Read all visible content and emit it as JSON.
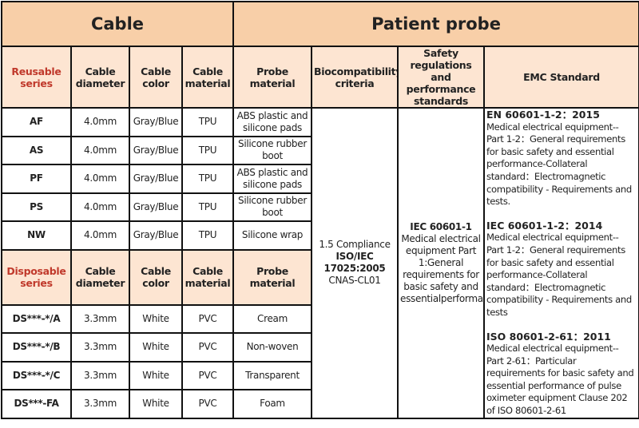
{
  "headers": {
    "cable": "Cable",
    "patient_probe": "Patient probe",
    "reusable_series": "Reusable series",
    "disposable_series": "Disposable series",
    "cable_diameter": "Cable diameter",
    "cable_color": "Cable color",
    "cable_material": "Cable material",
    "probe_material": "Probe material",
    "biocompatibility": "Biocompatibility criteria",
    "safety": "Safety regulations and performance standards",
    "emc": "EMC Standard"
  },
  "reusable": [
    {
      "series": "AF",
      "diameter": "4.0mm",
      "color": "Gray/Blue",
      "material": "TPU",
      "probe": "ABS plastic and silicone pads"
    },
    {
      "series": "AS",
      "diameter": "4.0mm",
      "color": "Gray/Blue",
      "material": "TPU",
      "probe": "Silicone rubber boot"
    },
    {
      "series": "PF",
      "diameter": "4.0mm",
      "color": "Gray/Blue",
      "material": "TPU",
      "probe": "ABS plastic and silicone pads"
    },
    {
      "series": "PS",
      "diameter": "4.0mm",
      "color": "Gray/Blue",
      "material": "TPU",
      "probe": "Silicone rubber boot"
    },
    {
      "series": "NW",
      "diameter": "4.0mm",
      "color": "Gray/Blue",
      "material": "TPU",
      "probe": "Silicone wrap"
    }
  ],
  "disposable": [
    {
      "series": "DS***-*/A",
      "diameter": "3.3mm",
      "color": "White",
      "material": "PVC",
      "probe": "Cream"
    },
    {
      "series": "DS***-*/B",
      "diameter": "3.3mm",
      "color": "White",
      "material": "PVC",
      "probe": "Non-woven"
    },
    {
      "series": "DS***-*/C",
      "diameter": "3.3mm",
      "color": "White",
      "material": "PVC",
      "probe": "Transparent"
    },
    {
      "series": "DS***-FA",
      "diameter": "3.3mm",
      "color": "White",
      "material": "PVC",
      "probe": "Foam"
    }
  ],
  "biocompatibility": {
    "line1": "1.5 Compliance",
    "bold": "ISO/IEC 17025:2005",
    "line3": "CNAS-CL01"
  },
  "safety": {
    "bold": "IEC 60601-1",
    "text": "Medical electrical equipment Part 1:General requirements for basic safety and essentialperformance"
  },
  "emc": [
    {
      "title": "EN 60601-1-2：2015",
      "text": "Medical electrical equipment-- Part 1-2：General requirements for basic safety and essential performance-Collateral standard：Electromagnetic compatibility - Requirements and tests."
    },
    {
      "title": "IEC 60601-1-2：2014",
      "text": "Medical electrical equipment-- Part 1-2：General requirements for basic safety and essential performance-Collateral standard：Electromagnetic compatibility - Requirements and tests"
    },
    {
      "title": "ISO 80601-2-61：2011",
      "text": "Medical electrical equipment-- Part 2-61：Particular requirements for basic safety and essential performance of pulse oximeter equipment Clause 202 of ISO 80601-2-61"
    }
  ],
  "colors": {
    "title_bg": "#f8cfa8",
    "header_bg": "#fde5d2",
    "series_label": "#c0392b"
  }
}
